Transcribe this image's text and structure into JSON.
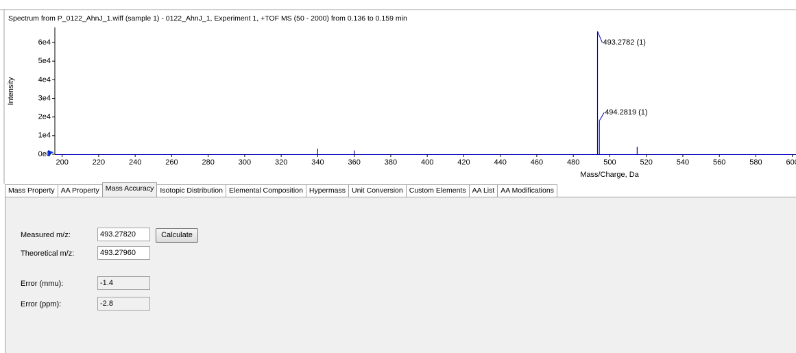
{
  "chart_data": {
    "type": "spectrum",
    "title": "Spectrum from P_0122_AhnJ_1.wiff (sample 1) - 0122_AhnJ_1, Experiment 1, +TOF MS (50 - 2000) from 0.136 to 0.159 min",
    "x_label": "Mass/Charge, Da",
    "y_label": "Intensity",
    "series": [
      {
        "color": "#0000c0",
        "x": [
          340,
          360,
          493.2782,
          494.2819,
          515
        ],
        "values": [
          3000,
          2000,
          66000,
          18000,
          4000
        ]
      }
    ],
    "annotations": [
      {
        "text": "493.2782 (1)",
        "x": 493.2782,
        "y": 66000
      },
      {
        "text": "494.2819 (1)",
        "x": 494.2819,
        "y": 18000
      }
    ],
    "xlim": [
      196,
      602
    ],
    "xticks": [
      200,
      220,
      240,
      260,
      280,
      300,
      320,
      340,
      360,
      380,
      400,
      420,
      440,
      460,
      480,
      500,
      520,
      540,
      560,
      580,
      600
    ],
    "ylim": [
      0,
      68000
    ],
    "yticks": [
      {
        "value": 0,
        "label": "0e0"
      },
      {
        "value": 10000,
        "label": "1e4"
      },
      {
        "value": 20000,
        "label": "2e4"
      },
      {
        "value": 30000,
        "label": "3e4"
      },
      {
        "value": 40000,
        "label": "4e4"
      },
      {
        "value": 50000,
        "label": "5e4"
      },
      {
        "value": 60000,
        "label": "6e4"
      }
    ]
  },
  "tabs": [
    "Mass Property",
    "AA Property",
    "Mass Accuracy",
    "Isotopic Distribution",
    "Elemental Composition",
    "Hypermass",
    "Unit Conversion",
    "Custom Elements",
    "AA List",
    "AA Modifications"
  ],
  "active_tab": 2,
  "form": {
    "measured_label": "Measured m/z:",
    "measured_value": "493.27820",
    "button": "Calculate",
    "theoretical_label": "Theoretical  m/z:",
    "theoretical_value": "493.27960",
    "error_mmu_label": "Error (mmu):",
    "error_mmu_value": "-1.4",
    "error_ppm_label": "Error (ppm):",
    "error_ppm_value": "-2.8"
  }
}
